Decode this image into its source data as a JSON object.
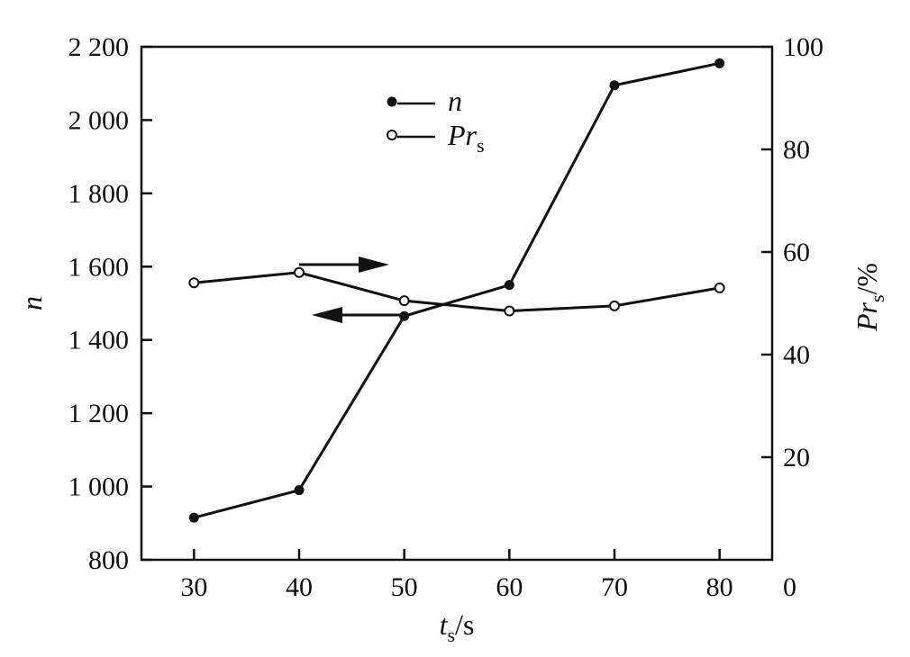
{
  "chart_data": {
    "type": "line",
    "title": "",
    "x": [
      30,
      40,
      50,
      60,
      70,
      80
    ],
    "x_ticks": [
      "30",
      "40",
      "50",
      "60",
      "70",
      "80"
    ],
    "xlim": [
      25,
      85
    ],
    "xlabel": {
      "main": "t",
      "sub": "s",
      "unit": "/s"
    },
    "y_left": {
      "ylim": [
        800,
        2200
      ],
      "ticks": [
        "800",
        "1 000",
        "1 200",
        "1 400",
        "1 600",
        "1 800",
        "2 000",
        "2 200"
      ],
      "label": "n"
    },
    "y_right": {
      "ylim": [
        0,
        100
      ],
      "ticks": [
        "0",
        "20",
        "40",
        "60",
        "80",
        "100"
      ],
      "label": {
        "main": "Pr",
        "sub": "s",
        "unit": "/%"
      }
    },
    "series": [
      {
        "name": "n",
        "axis": "left",
        "marker": "filled-circle",
        "values": [
          915,
          990,
          1465,
          1550,
          2095,
          2155
        ]
      },
      {
        "name": "Pr",
        "name_sub": "s",
        "axis": "right",
        "marker": "open-circle",
        "values": [
          54,
          56,
          50.5,
          48.5,
          49.5,
          53
        ]
      }
    ],
    "legend_position": "top-center",
    "grid": false
  }
}
